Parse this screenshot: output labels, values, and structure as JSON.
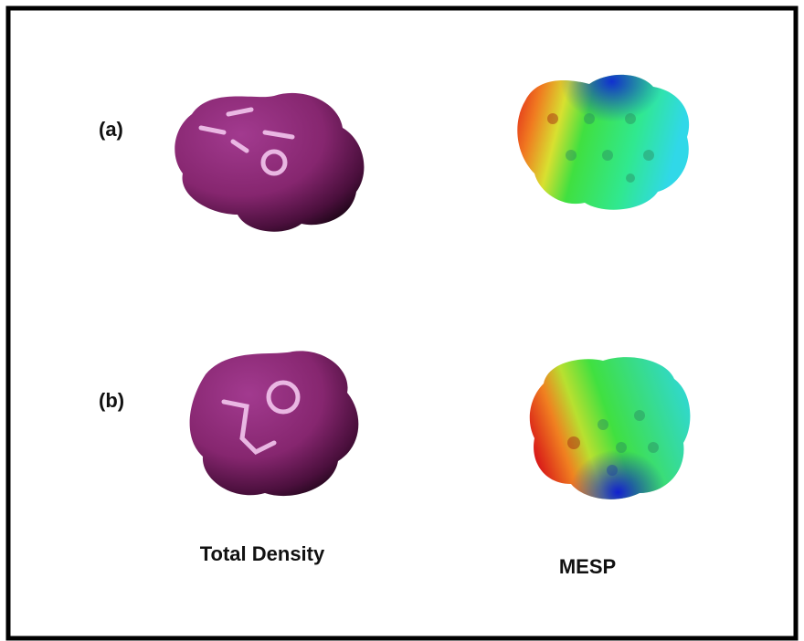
{
  "panels": [
    {
      "label": "(a)"
    },
    {
      "label": "(b)"
    }
  ],
  "columns": [
    "Total Density",
    "MESP"
  ]
}
